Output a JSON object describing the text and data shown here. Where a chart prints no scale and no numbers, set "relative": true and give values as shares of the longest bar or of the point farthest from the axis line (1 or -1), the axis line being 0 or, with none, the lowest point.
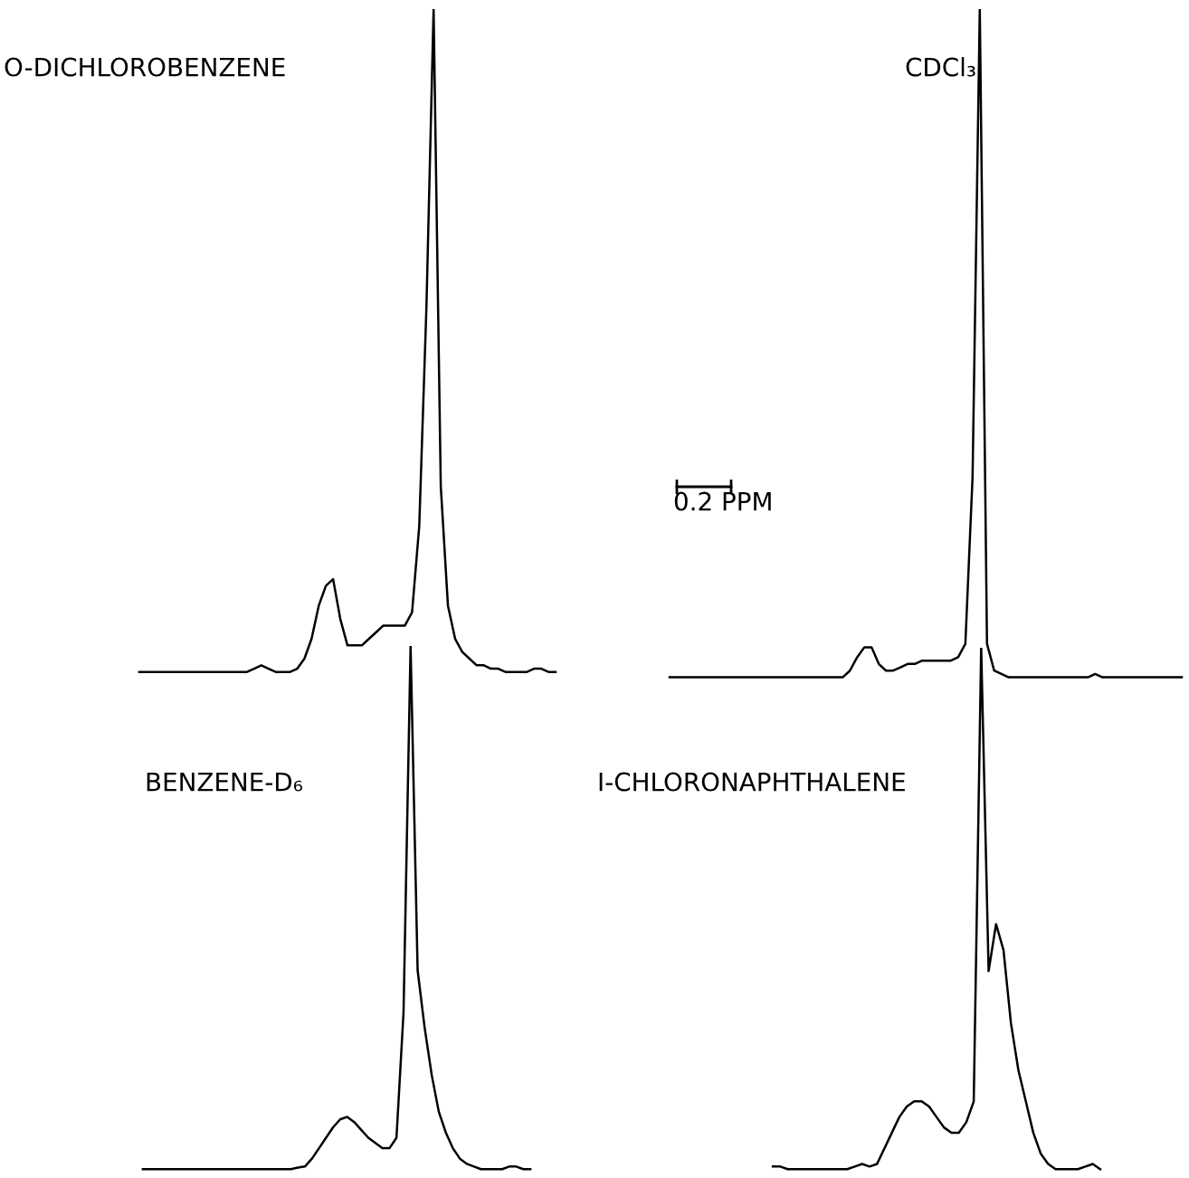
{
  "chart_data": [
    {
      "type": "line",
      "title": "O-DICHLOROBENZENE",
      "relative": true,
      "categories": [
        null,
        null,
        null,
        null,
        null,
        null,
        null,
        null,
        null,
        null,
        null,
        null,
        null,
        null,
        null,
        null,
        null,
        null,
        null,
        null,
        null,
        null,
        null,
        null,
        null,
        null,
        null,
        null,
        null,
        null,
        null,
        null,
        null,
        null,
        null,
        null,
        null,
        null,
        null,
        null,
        null,
        null,
        null,
        null,
        null,
        null,
        null,
        null,
        null,
        null,
        null,
        null,
        null,
        null,
        null,
        null,
        null,
        null,
        null
      ],
      "series": [
        {
          "color": "#000000",
          "values": [
            0,
            0,
            0,
            0,
            0,
            0,
            0,
            0,
            0,
            0,
            0,
            0,
            0,
            0,
            0,
            0,
            0.005,
            0.01,
            0.005,
            0,
            0,
            0,
            0.005,
            0.02,
            0.05,
            0.1,
            0.13,
            0.14,
            0.08,
            0.04,
            0.04,
            0.04,
            0.05,
            0.06,
            0.07,
            0.07,
            0.07,
            0.07,
            0.09,
            0.22,
            0.55,
            1,
            0.28,
            0.1,
            0.05,
            0.03,
            0.02,
            0.01,
            0.01,
            0.005,
            0.005,
            0,
            0,
            0,
            0,
            0.005,
            0.005,
            0,
            0
          ]
        }
      ]
    },
    {
      "type": "line",
      "title": "CDCl₃",
      "relative": true,
      "annotations": [
        "0.2 PPM"
      ],
      "categories": [
        null,
        null,
        null,
        null,
        null,
        null,
        null,
        null,
        null,
        null,
        null,
        null,
        null,
        null,
        null,
        null,
        null,
        null,
        null,
        null,
        null,
        null,
        null,
        null,
        null,
        null,
        null,
        null,
        null,
        null,
        null,
        null,
        null,
        null,
        null,
        null,
        null,
        null,
        null,
        null,
        null,
        null,
        null,
        null,
        null,
        null,
        null,
        null,
        null,
        null,
        null,
        null,
        null,
        null,
        null,
        null,
        null,
        null,
        null,
        null,
        null,
        null,
        null,
        null,
        null,
        null,
        null,
        null,
        null,
        null,
        null,
        null
      ],
      "series": [
        {
          "color": "#000000",
          "values": [
            0,
            0,
            0,
            0,
            0,
            0,
            0,
            0,
            0,
            0,
            0,
            0,
            0,
            0,
            0,
            0,
            0,
            0,
            0,
            0,
            0,
            0,
            0,
            0,
            0,
            0.01,
            0.03,
            0.045,
            0.045,
            0.02,
            0.01,
            0.01,
            0.015,
            0.02,
            0.02,
            0.025,
            0.025,
            0.025,
            0.025,
            0.025,
            0.03,
            0.05,
            0.3,
            1,
            0.05,
            0.01,
            0.005,
            0,
            0,
            0,
            0,
            0,
            0,
            0,
            0,
            0,
            0,
            0,
            0,
            0.005,
            0,
            0,
            0,
            0,
            0,
            0,
            0,
            0,
            0,
            0,
            0,
            0
          ]
        }
      ]
    },
    {
      "type": "line",
      "title": "BENZENE-D₆",
      "relative": true,
      "categories": [
        null,
        null,
        null,
        null,
        null,
        null,
        null,
        null,
        null,
        null,
        null,
        null,
        null,
        null,
        null,
        null,
        null,
        null,
        null,
        null,
        null,
        null,
        null,
        null,
        null,
        null,
        null,
        null,
        null,
        null,
        null,
        null,
        null,
        null,
        null,
        null,
        null,
        null,
        null,
        null,
        null,
        null,
        null,
        null,
        null,
        null,
        null,
        null,
        null,
        null,
        null,
        null,
        null,
        null,
        null,
        null
      ],
      "series": [
        {
          "color": "#000000",
          "values": [
            0,
            0,
            0,
            0,
            0,
            0,
            0,
            0,
            0,
            0,
            0,
            0,
            0,
            0,
            0,
            0,
            0,
            0,
            0,
            0,
            0,
            0,
            0.003,
            0.005,
            0.02,
            0.04,
            0.06,
            0.08,
            0.095,
            0.1,
            0.09,
            0.075,
            0.06,
            0.05,
            0.04,
            0.04,
            0.06,
            0.3,
            1,
            0.38,
            0.27,
            0.18,
            0.11,
            0.07,
            0.04,
            0.02,
            0.01,
            0.005,
            0,
            0,
            0,
            0,
            0.005,
            0.005,
            0,
            0
          ]
        }
      ]
    },
    {
      "type": "line",
      "title": "I-CHLORONAPHTHALENE",
      "relative": true,
      "categories": [
        null,
        null,
        null,
        null,
        null,
        null,
        null,
        null,
        null,
        null,
        null,
        null,
        null,
        null,
        null,
        null,
        null,
        null,
        null,
        null,
        null,
        null,
        null,
        null,
        null,
        null,
        null,
        null,
        null,
        null,
        null,
        null,
        null,
        null,
        null,
        null,
        null,
        null,
        null,
        null,
        null,
        null,
        null,
        null,
        null
      ],
      "series": [
        {
          "color": "#000000",
          "values": [
            0.005,
            0.005,
            0,
            0,
            0,
            0,
            0,
            0,
            0,
            0,
            0,
            0.005,
            0.01,
            0.005,
            0.01,
            0.04,
            0.07,
            0.1,
            0.12,
            0.13,
            0.13,
            0.12,
            0.1,
            0.08,
            0.07,
            0.07,
            0.09,
            0.13,
            1,
            0.38,
            0.47,
            0.42,
            0.28,
            0.19,
            0.13,
            0.07,
            0.03,
            0.01,
            0,
            0,
            0,
            0,
            0.005,
            0.01,
            0
          ]
        }
      ]
    }
  ]
}
